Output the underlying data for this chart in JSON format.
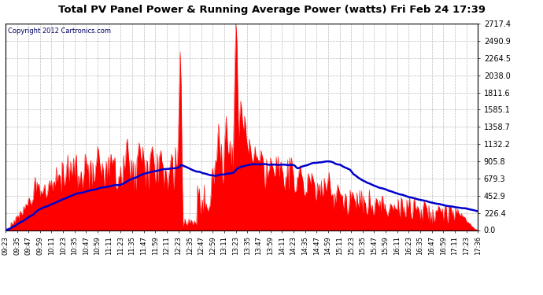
{
  "title": "Total PV Panel Power & Running Average Power (watts) Fri Feb 24 17:39",
  "copyright": "Copyright 2012 Cartronics.com",
  "y_max": 2717.4,
  "y_min": 0.0,
  "y_ticks": [
    0.0,
    226.4,
    452.9,
    679.3,
    905.8,
    1132.2,
    1358.7,
    1585.1,
    1811.6,
    2038.0,
    2264.5,
    2490.9,
    2717.4
  ],
  "background_color": "#ffffff",
  "plot_bg_color": "#ffffff",
  "grid_color": "#bbbbbb",
  "fill_color": "#ff0000",
  "line_color": "#0000cc",
  "title_color": "#000000",
  "border_color": "#000000",
  "copyright_color": "#000066",
  "x_tick_labels": [
    "09:23",
    "09:35",
    "09:47",
    "09:59",
    "10:11",
    "10:23",
    "10:35",
    "10:47",
    "10:59",
    "11:11",
    "11:23",
    "11:35",
    "11:47",
    "11:59",
    "12:11",
    "12:23",
    "12:35",
    "12:47",
    "12:59",
    "13:11",
    "13:23",
    "13:35",
    "13:47",
    "13:59",
    "14:11",
    "14:23",
    "14:35",
    "14:47",
    "14:59",
    "15:11",
    "15:23",
    "15:35",
    "15:47",
    "15:59",
    "16:11",
    "16:23",
    "16:35",
    "16:47",
    "16:59",
    "17:11",
    "17:23",
    "17:36"
  ]
}
